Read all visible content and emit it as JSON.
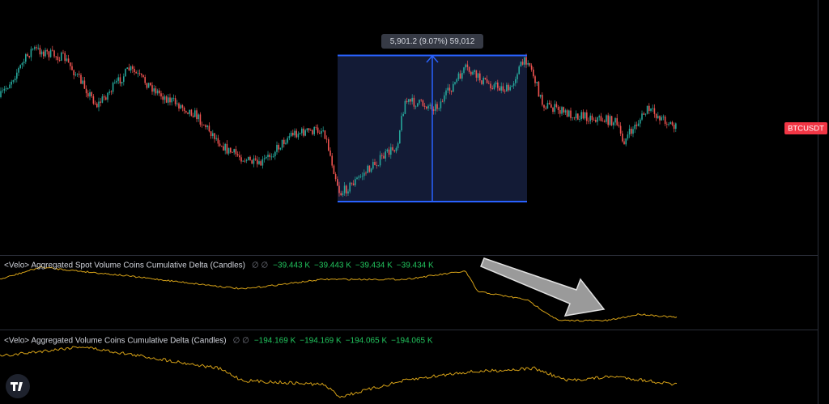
{
  "measure": {
    "label": "5,901.2 (9.07%) 59,012"
  },
  "symbol": "BTCUSDT",
  "panes": [
    {
      "title": "<Velo> Aggregated Spot Volume Coins Cumulative Delta (Candles)",
      "icons": "∅ ∅",
      "values": [
        "−39.443 K",
        "−39.443 K",
        "−39.434 K",
        "−39.434 K"
      ]
    },
    {
      "title": "<Velo> Aggregated Volume Coins Cumulative Delta (Candles)",
      "icons": "∅ ∅",
      "values": [
        "−194.169 K",
        "−194.169 K",
        "−194.065 K",
        "−194.065 K"
      ]
    }
  ]
}
